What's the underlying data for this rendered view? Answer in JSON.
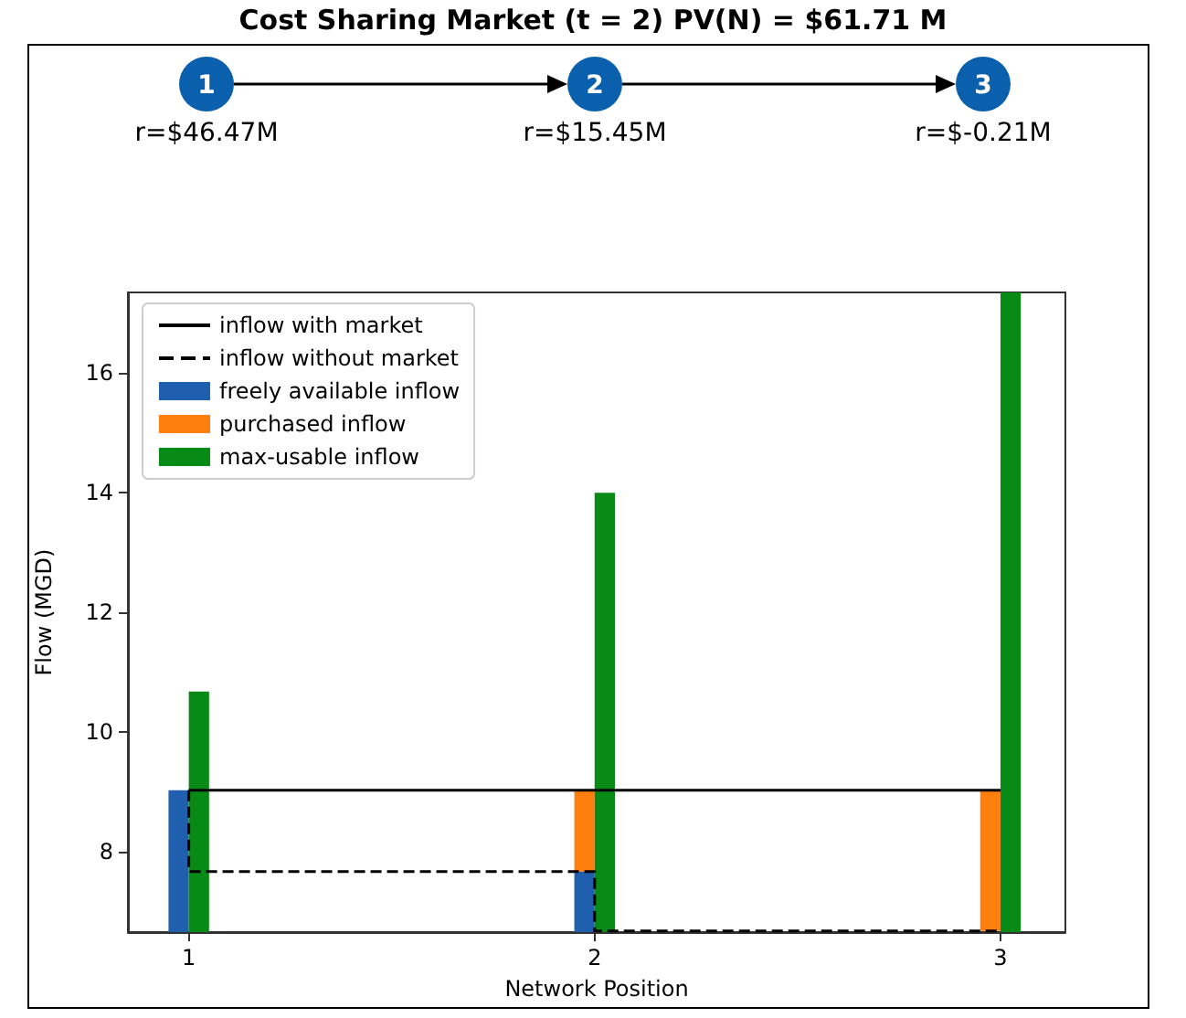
{
  "chart_data": {
    "type": "bar",
    "title": "Cost Sharing Market (t = 2) PV(N) = $61.71 M",
    "xlabel": "Network Position",
    "ylabel": "Flow (MGD)",
    "annotations": [
      "1",
      "r=$46.47M",
      "2",
      "r=$15.45M",
      "3",
      "r=$-0.21M"
    ],
    "x": [
      1,
      2,
      3
    ],
    "xlim": [
      0.85,
      3.16
    ],
    "xticks": [
      1,
      2,
      3
    ],
    "ylim": [
      6.66,
      17.35
    ],
    "yticks": [
      8,
      10,
      12,
      14,
      16
    ],
    "grid": false,
    "legend": "top left",
    "series": [
      {
        "name": "inflow with market",
        "type": "line",
        "line_style": "solid",
        "color": "#000000",
        "x": [
          1,
          3
        ],
        "values": [
          9.03,
          9.03
        ]
      },
      {
        "name": "inflow without market",
        "type": "line",
        "line_style": "dashed",
        "color": "#000000",
        "x": [
          1,
          1,
          2,
          2,
          3
        ],
        "values": [
          9.03,
          7.67,
          7.67,
          6.68,
          6.68
        ]
      },
      {
        "name": "freely available inflow",
        "color": "#1f5fad",
        "values": [
          9.03,
          7.67,
          null
        ]
      },
      {
        "name": "purchased inflow",
        "color": "#ff7f0e",
        "base": [
          null,
          7.67,
          6.68
        ],
        "values": [
          null,
          1.36,
          2.35
        ]
      },
      {
        "name": "max-usable inflow",
        "color": "#078a16",
        "values": [
          10.68,
          14.0,
          17.35
        ]
      }
    ]
  }
}
